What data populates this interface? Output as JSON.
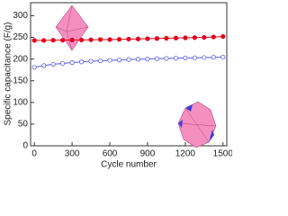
{
  "chart_data": {
    "type": "line",
    "xlabel": "Cycle number",
    "ylabel": "Specific capacitance (F/g)",
    "x": [
      0,
      75,
      150,
      225,
      300,
      375,
      450,
      525,
      600,
      675,
      750,
      825,
      900,
      975,
      1050,
      1125,
      1200,
      1275,
      1350,
      1425,
      1500
    ],
    "series": [
      {
        "color": "#e3001b",
        "marker": "filled",
        "values": [
          243,
          243,
          243.5,
          243.5,
          244,
          244,
          244.5,
          245,
          245,
          245.5,
          246,
          246.5,
          247,
          247.5,
          248,
          248.5,
          249,
          249.5,
          250,
          251,
          252
        ]
      },
      {
        "color": "#5a5ae6",
        "marker": "open",
        "values": [
          181,
          185,
          188,
          190,
          192,
          193.5,
          195,
          196,
          197,
          198,
          199,
          199.5,
          200,
          201,
          201.5,
          202,
          202.5,
          203,
          203.5,
          204,
          204.5
        ]
      }
    ],
    "xlim": [
      -30,
      1530
    ],
    "xticks": [
      0,
      300,
      600,
      900,
      1200,
      1500
    ],
    "ylim": [
      0,
      330
    ],
    "yticks": [
      0,
      50,
      100,
      150,
      200,
      250,
      300
    ]
  }
}
